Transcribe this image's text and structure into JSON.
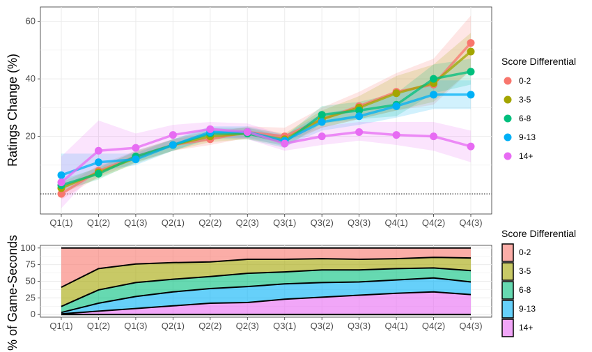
{
  "chart_data": [
    {
      "type": "line",
      "ylabel": "Ratings Change (%)",
      "xlabel": "",
      "categories": [
        "Q1(1)",
        "Q1(2)",
        "Q1(3)",
        "Q2(1)",
        "Q2(2)",
        "Q2(3)",
        "Q3(1)",
        "Q3(2)",
        "Q3(3)",
        "Q4(1)",
        "Q4(2)",
        "Q4(3)"
      ],
      "ylim": [
        -7,
        65
      ],
      "yticks": [
        20,
        40,
        60
      ],
      "reference_line": 0,
      "grid": true,
      "legend": {
        "title": "Score Differential",
        "placement": "right"
      },
      "series": [
        {
          "name": "0-2",
          "color": "#F8766D",
          "values": [
            0,
            8,
            13,
            17,
            19,
            21.5,
            20,
            26,
            30.5,
            35.5,
            38,
            52.5
          ],
          "lower": [
            -2,
            6,
            11,
            15,
            17,
            19.5,
            18,
            23,
            26,
            29,
            31,
            43
          ],
          "upper": [
            2,
            10,
            15,
            19,
            21,
            23.5,
            23,
            30,
            35.5,
            42,
            47,
            62
          ]
        },
        {
          "name": "3-5",
          "color": "#A3A500",
          "values": [
            2,
            7.5,
            12.5,
            17,
            20,
            21,
            19,
            26,
            30,
            35,
            38.5,
            49.5
          ],
          "lower": [
            0,
            5.5,
            10.5,
            15,
            18,
            19,
            17,
            23,
            26,
            29,
            32,
            43
          ],
          "upper": [
            4,
            9.5,
            14.5,
            19,
            22,
            23,
            21,
            29,
            34,
            41,
            45,
            56
          ]
        },
        {
          "name": "6-8",
          "color": "#00BF7D",
          "values": [
            3,
            7,
            13,
            17,
            21,
            21,
            18,
            27.5,
            29,
            31,
            40,
            42.5
          ],
          "lower": [
            1,
            5,
            11,
            15,
            19,
            19,
            16,
            24.5,
            26,
            27,
            35,
            38
          ],
          "upper": [
            5,
            9,
            15,
            19,
            23,
            23,
            20,
            30.5,
            32,
            35,
            45,
            47
          ]
        },
        {
          "name": "9-13",
          "color": "#00B0F6",
          "values": [
            6.5,
            11,
            12,
            17,
            21.5,
            21.5,
            18.5,
            25,
            27,
            30.5,
            34.5,
            34.5
          ],
          "lower": [
            1.5,
            8,
            10,
            15,
            19.5,
            19.5,
            16.5,
            22,
            24,
            26.5,
            29.5,
            29.5
          ],
          "upper": [
            14,
            14,
            14,
            19,
            23.5,
            23.5,
            20.5,
            28,
            30,
            34.5,
            39.5,
            39.5
          ]
        },
        {
          "name": "14+",
          "color": "#E76BF3",
          "values": [
            4,
            15,
            16,
            20.5,
            22.5,
            21.5,
            17.5,
            20,
            21.5,
            20.5,
            20,
            16.5
          ],
          "lower": [
            -5,
            9,
            12,
            17.5,
            20,
            19,
            15,
            17,
            18.5,
            17,
            15,
            11
          ],
          "upper": [
            13,
            25.5,
            21,
            24,
            25,
            24.5,
            20.5,
            23.5,
            25,
            25,
            25,
            22
          ]
        }
      ]
    },
    {
      "type": "area",
      "stacked": true,
      "ylabel": "% of Game-Seconds",
      "xlabel": "",
      "categories": [
        "Q1(1)",
        "Q1(2)",
        "Q1(3)",
        "Q2(1)",
        "Q2(2)",
        "Q2(3)",
        "Q3(1)",
        "Q3(2)",
        "Q3(3)",
        "Q4(1)",
        "Q4(2)",
        "Q4(3)"
      ],
      "ylim": [
        -4,
        104
      ],
      "yticks": [
        0,
        25,
        50,
        75,
        100
      ],
      "grid": true,
      "legend": {
        "title": "Score Differential",
        "placement": "right"
      },
      "series": [
        {
          "name": "0-2",
          "color": "#F8766D",
          "values": [
            59,
            31,
            24,
            22,
            21,
            17,
            17,
            16,
            17,
            16,
            14,
            15
          ]
        },
        {
          "name": "3-5",
          "color": "#A3A500",
          "values": [
            29,
            32,
            28,
            25,
            22,
            21,
            19,
            17,
            16,
            15,
            16,
            19
          ]
        },
        {
          "name": "6-8",
          "color": "#00BF7D",
          "values": [
            9,
            20,
            21,
            19,
            18,
            20,
            18,
            19,
            18,
            17,
            15,
            17
          ]
        },
        {
          "name": "9-13",
          "color": "#00B0F6",
          "values": [
            2,
            12,
            18,
            21,
            22,
            24,
            23,
            22,
            20,
            20,
            21,
            19
          ]
        },
        {
          "name": "14+",
          "color": "#E76BF3",
          "values": [
            1,
            5,
            9,
            13,
            17,
            18,
            23,
            26,
            29,
            32,
            34,
            30
          ]
        }
      ]
    }
  ]
}
